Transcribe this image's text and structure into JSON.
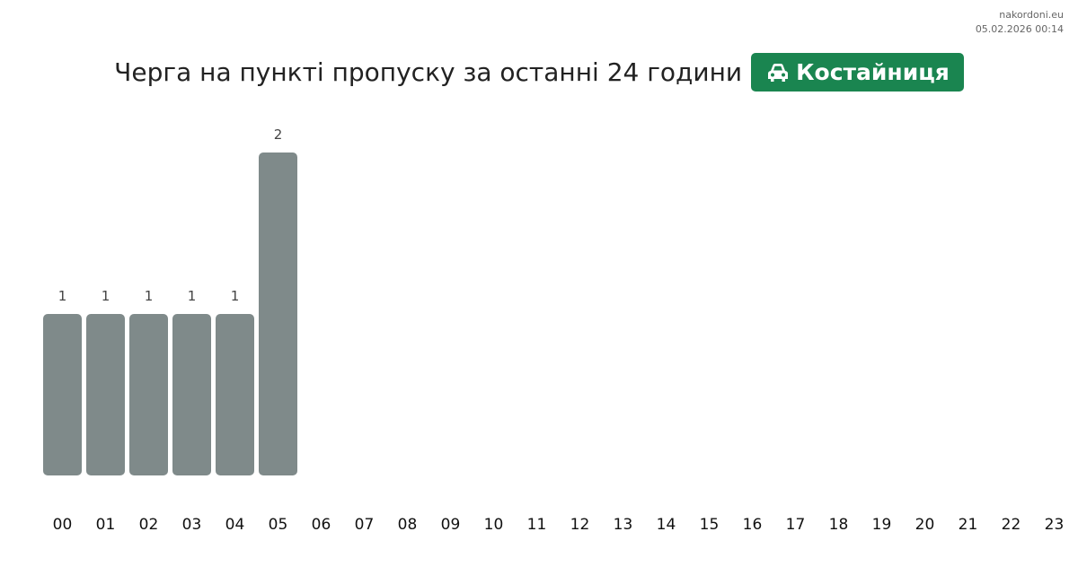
{
  "chart_data": {
    "type": "bar",
    "title": "Черга на пункті пропуску за останні 24 години",
    "badge": "Костайниця",
    "source": "nakordoni.eu",
    "timestamp": "05.02.2026 00:14",
    "categories": [
      "00",
      "01",
      "02",
      "03",
      "04",
      "05",
      "06",
      "07",
      "08",
      "09",
      "10",
      "11",
      "12",
      "13",
      "14",
      "15",
      "16",
      "17",
      "18",
      "19",
      "20",
      "21",
      "22",
      "23"
    ],
    "values": [
      1,
      1,
      1,
      1,
      1,
      2,
      null,
      null,
      null,
      null,
      null,
      null,
      null,
      null,
      null,
      null,
      null,
      null,
      null,
      null,
      null,
      null,
      null,
      null
    ],
    "color": "#7f8a8a"
  }
}
